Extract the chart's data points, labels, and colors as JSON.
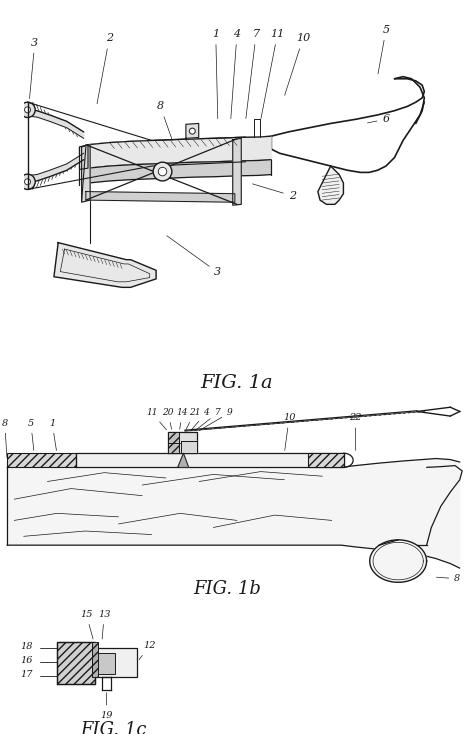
{
  "bg_color": "#ffffff",
  "line_color": "#1a1a1a",
  "fig1a_label": "FIG. 1a",
  "fig1b_label": "FIG. 1b",
  "fig1c_label": "FIG. 1c"
}
